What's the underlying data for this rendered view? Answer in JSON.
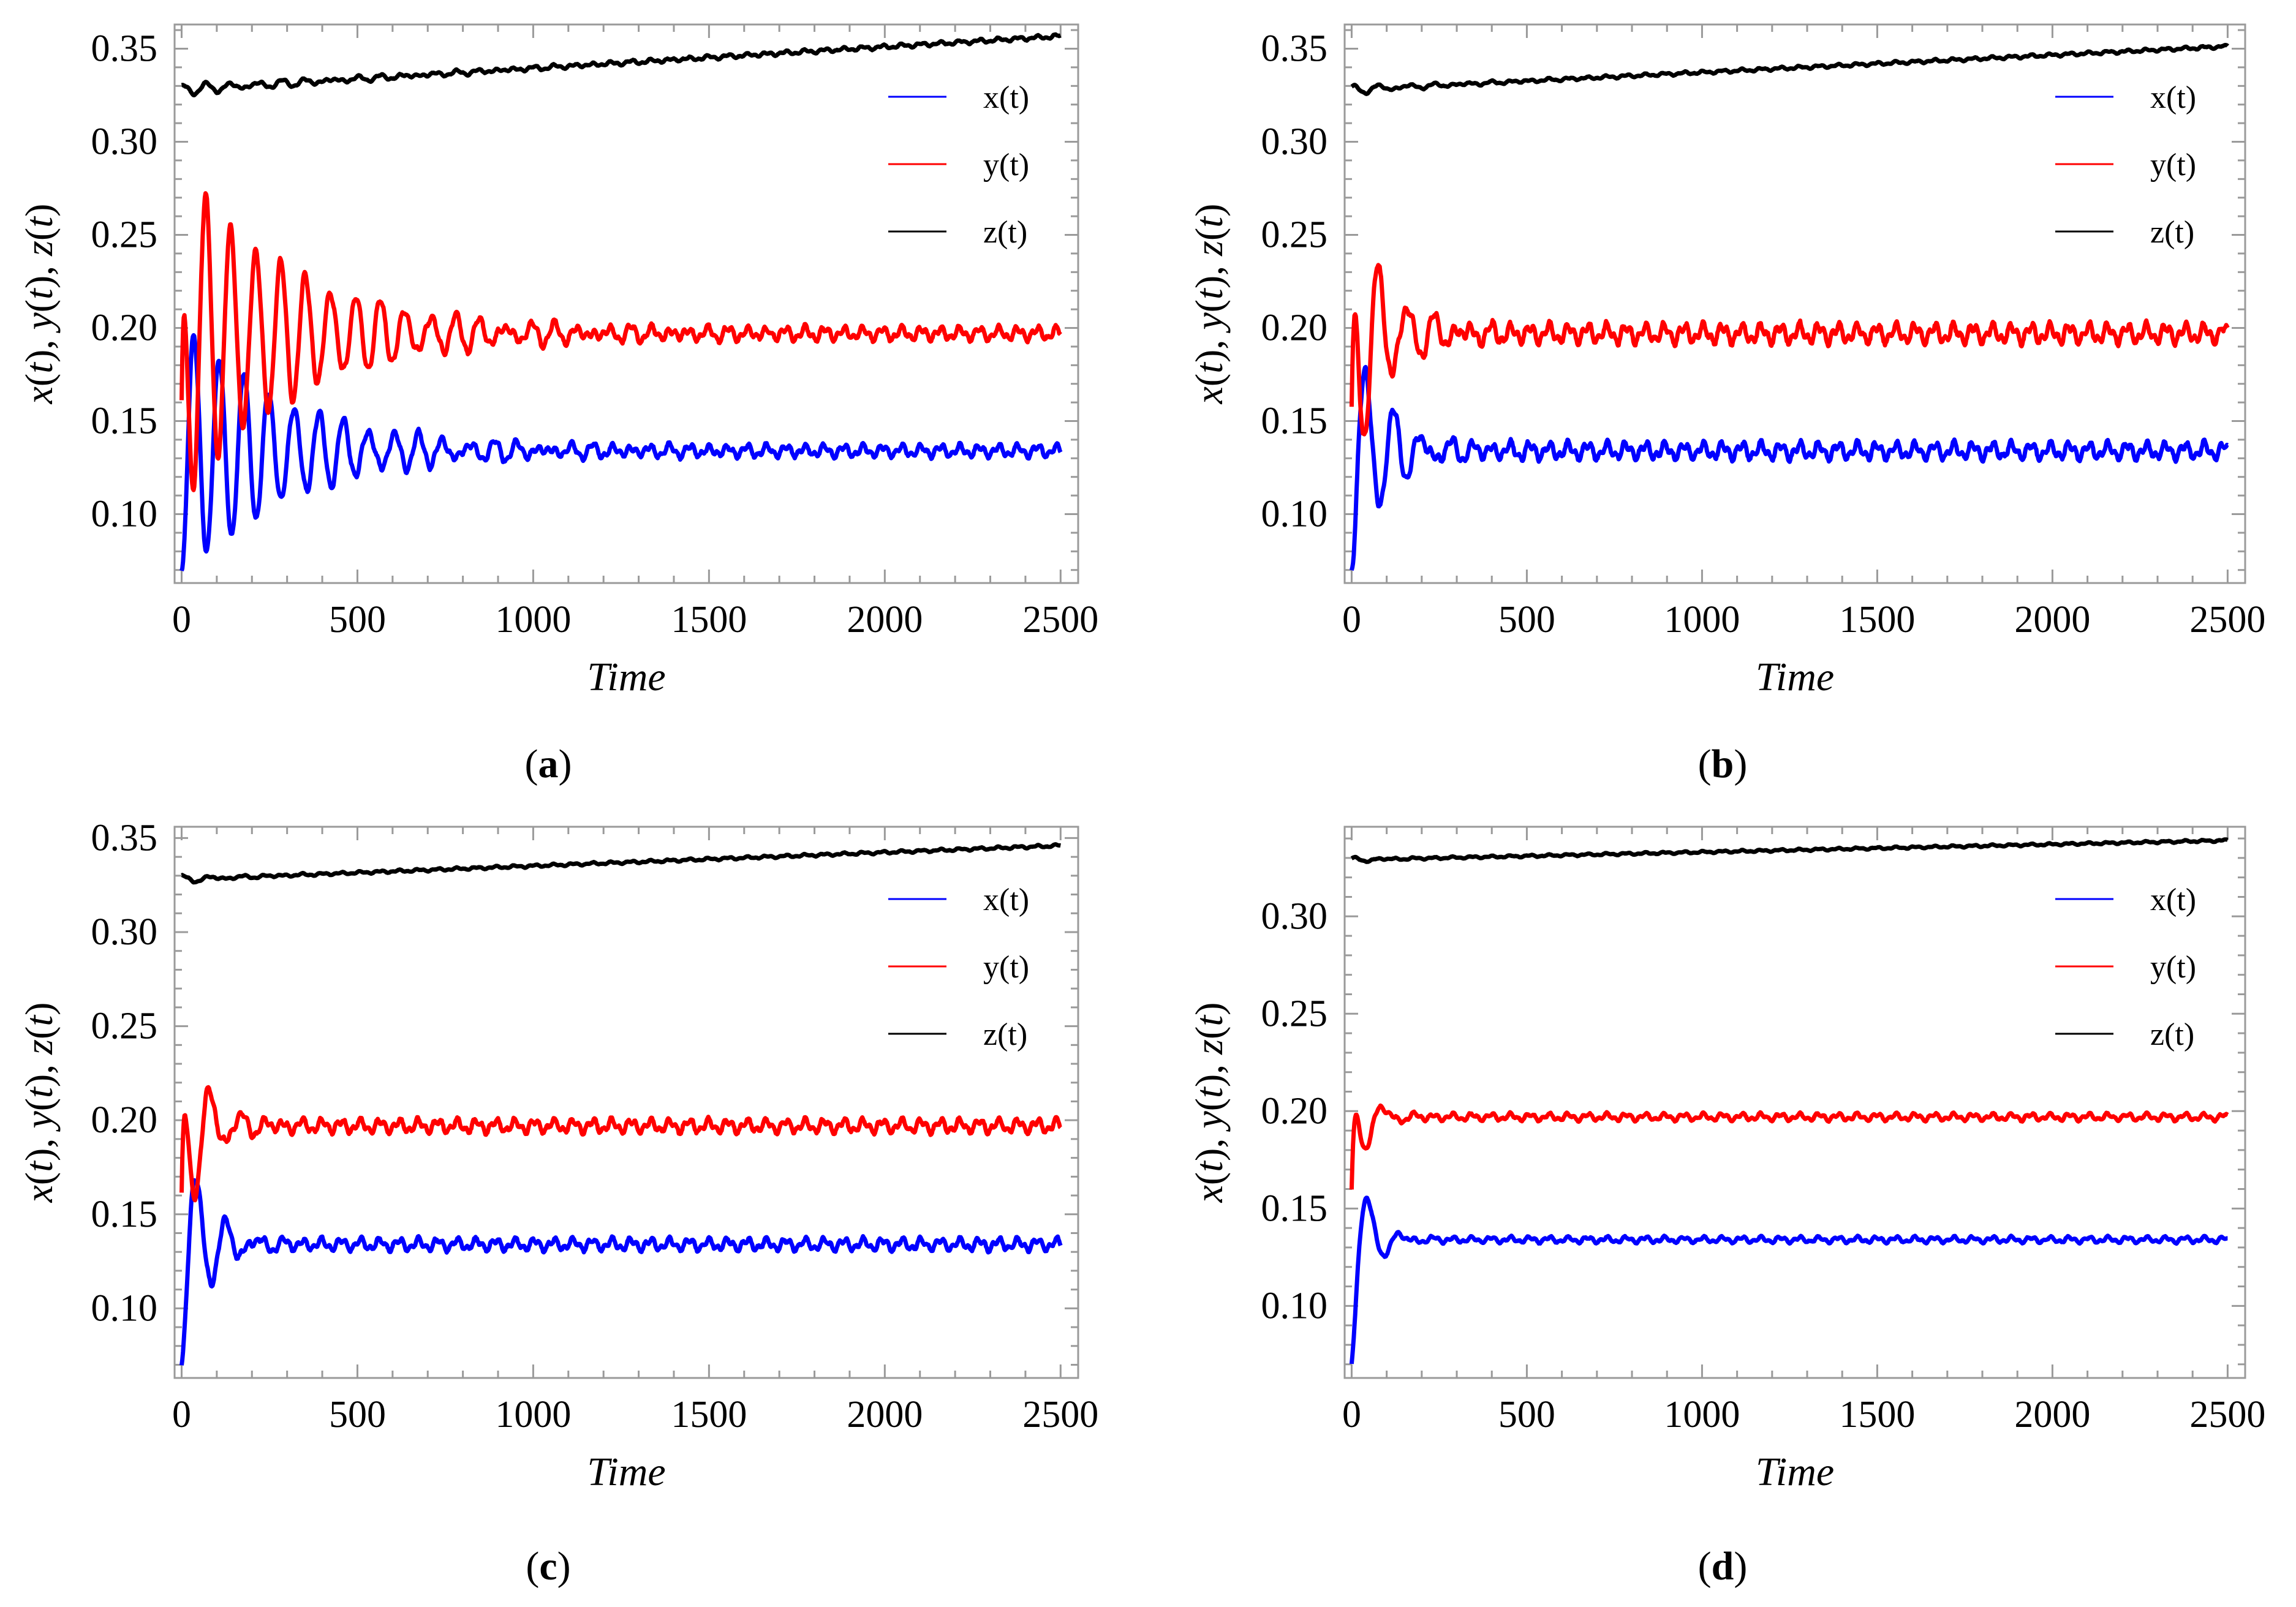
{
  "figure": {
    "panels": [
      {
        "label": "a",
        "paren_open": "(",
        "paren_close": ")"
      },
      {
        "label": "b",
        "paren_open": "(",
        "paren_close": ")"
      },
      {
        "label": "c",
        "paren_open": "(",
        "paren_close": ")"
      },
      {
        "label": "d",
        "paren_open": "(",
        "paren_close": ")"
      }
    ]
  },
  "chart_data": [
    {
      "type": "line",
      "panel": "a",
      "title": "",
      "xlabel": "Time",
      "ylabel_parts": [
        "x",
        "(",
        "t",
        "), ",
        "y",
        "(",
        "t",
        "), ",
        "z",
        "(",
        "t",
        ")"
      ],
      "xlim": [
        -20,
        2550
      ],
      "ylim": [
        0.063,
        0.363
      ],
      "xticks": [
        0,
        500,
        1000,
        1500,
        2000,
        2500
      ],
      "xtick_labels": [
        "0",
        "500",
        "1000",
        "1500",
        "2000",
        "2500"
      ],
      "yticks": [
        0.1,
        0.15,
        0.2,
        0.25,
        0.3,
        0.35
      ],
      "ytick_labels": [
        "0.10",
        "0.15",
        "0.20",
        "0.25",
        "0.30",
        "0.35"
      ],
      "legend_position": "top-right",
      "series": [
        {
          "name": "x(t)",
          "color": "#0000ff",
          "x0": 0.07,
          "mean": 0.134,
          "amp0": 0.072,
          "decay": 300,
          "period": 71,
          "phase": 3.1416,
          "res_amp": 0.0025,
          "trend": 0
        },
        {
          "name": "y(t)",
          "color": "#ff0000",
          "x0": 0.16,
          "mean": 0.197,
          "amp0": 0.088,
          "decay": 330,
          "period": 71,
          "phase": 0.2,
          "res_amp": 0.0028,
          "trend": 0
        },
        {
          "name": "z(t)",
          "color": "#000000",
          "x0": 0.33,
          "mean": 0.328,
          "amp0": 0.0025,
          "decay": 500,
          "period": 71,
          "phase": 0,
          "res_amp": 0.0008,
          "trend": 1.15e-05
        }
      ]
    },
    {
      "type": "line",
      "panel": "b",
      "title": "",
      "xlabel": "Time",
      "ylabel_parts": [
        "x",
        "(",
        "t",
        "), ",
        "y",
        "(",
        "t",
        "), ",
        "z",
        "(",
        "t",
        ")"
      ],
      "xlim": [
        -20,
        2550
      ],
      "ylim": [
        0.063,
        0.363
      ],
      "xticks": [
        0,
        500,
        1000,
        1500,
        2000,
        2500
      ],
      "xtick_labels": [
        "0",
        "500",
        "1000",
        "1500",
        "2000",
        "2500"
      ],
      "yticks": [
        0.1,
        0.15,
        0.2,
        0.25,
        0.3,
        0.35
      ],
      "ytick_labels": [
        "0.10",
        "0.15",
        "0.20",
        "0.25",
        "0.30",
        "0.35"
      ],
      "legend_position": "top-right",
      "series": [
        {
          "name": "x(t)",
          "color": "#0000ff",
          "x0": 0.07,
          "mean": 0.134,
          "amp0": 0.07,
          "decay": 95,
          "period": 80,
          "phase": 3.1416,
          "res_amp": 0.0035,
          "trend": 0
        },
        {
          "name": "y(t)",
          "color": "#ff0000",
          "x0": 0.16,
          "mean": 0.197,
          "amp0": 0.075,
          "decay": 100,
          "period": 80,
          "phase": 0.2,
          "res_amp": 0.004,
          "trend": 0
        },
        {
          "name": "z(t)",
          "color": "#000000",
          "x0": 0.33,
          "mean": 0.328,
          "amp0": 0.0022,
          "decay": 200,
          "period": 80,
          "phase": 0,
          "res_amp": 0.0006,
          "trend": 9.3e-06
        }
      ]
    },
    {
      "type": "line",
      "panel": "c",
      "title": "",
      "xlabel": "Time",
      "ylabel_parts": [
        "x",
        "(",
        "t",
        "), ",
        "y",
        "(",
        "t",
        "), ",
        "z",
        "(",
        "t",
        ")"
      ],
      "xlim": [
        -20,
        2550
      ],
      "ylim": [
        0.063,
        0.356
      ],
      "xticks": [
        0,
        500,
        1000,
        1500,
        2000,
        2500
      ],
      "xtick_labels": [
        "0",
        "500",
        "1000",
        "1500",
        "2000",
        "2500"
      ],
      "yticks": [
        0.1,
        0.15,
        0.2,
        0.25,
        0.3,
        0.35
      ],
      "ytick_labels": [
        "0.10",
        "0.15",
        "0.20",
        "0.25",
        "0.30",
        "0.35"
      ],
      "legend_position": "top-right",
      "series": [
        {
          "name": "x(t)",
          "color": "#0000ff",
          "x0": 0.07,
          "mean": 0.134,
          "amp0": 0.068,
          "decay": 70,
          "period": 85,
          "phase": 3.1416,
          "res_amp": 0.0025,
          "trend": 0
        },
        {
          "name": "y(t)",
          "color": "#ff0000",
          "x0": 0.16,
          "mean": 0.197,
          "amp0": 0.06,
          "decay": 70,
          "period": 85,
          "phase": 0.2,
          "res_amp": 0.0028,
          "trend": 0
        },
        {
          "name": "z(t)",
          "color": "#000000",
          "x0": 0.33,
          "mean": 0.328,
          "amp0": 0.0018,
          "decay": 120,
          "period": 85,
          "phase": 0,
          "res_amp": 0.0005,
          "trend": 7.2e-06
        }
      ]
    },
    {
      "type": "line",
      "panel": "d",
      "title": "",
      "xlabel": "Time",
      "ylabel_parts": [
        "x",
        "(",
        "t",
        "), ",
        "y",
        "(",
        "t",
        "), ",
        "z",
        "(",
        "t",
        ")"
      ],
      "xlim": [
        -20,
        2550
      ],
      "ylim": [
        0.063,
        0.346
      ],
      "xticks": [
        0,
        500,
        1000,
        1500,
        2000,
        2500
      ],
      "xtick_labels": [
        "0",
        "500",
        "1000",
        "1500",
        "2000",
        "2500"
      ],
      "yticks": [
        0.1,
        0.15,
        0.2,
        0.25,
        0.3
      ],
      "ytick_labels": [
        "0.10",
        "0.15",
        "0.20",
        "0.25",
        "0.30"
      ],
      "legend_position": "top-right",
      "series": [
        {
          "name": "x(t)",
          "color": "#0000ff",
          "x0": 0.07,
          "mean": 0.134,
          "amp0": 0.06,
          "decay": 45,
          "period": 95,
          "phase": 3.1416,
          "res_amp": 0.0012,
          "trend": 0
        },
        {
          "name": "y(t)",
          "color": "#ff0000",
          "x0": 0.16,
          "mean": 0.197,
          "amp0": 0.038,
          "decay": 45,
          "period": 95,
          "phase": 0.2,
          "res_amp": 0.0014,
          "trend": 0
        },
        {
          "name": "z(t)",
          "color": "#000000",
          "x0": 0.33,
          "mean": 0.329,
          "amp0": 0.0014,
          "decay": 60,
          "period": 95,
          "phase": 0,
          "res_amp": 0.0004,
          "trend": 4e-06
        }
      ]
    }
  ]
}
